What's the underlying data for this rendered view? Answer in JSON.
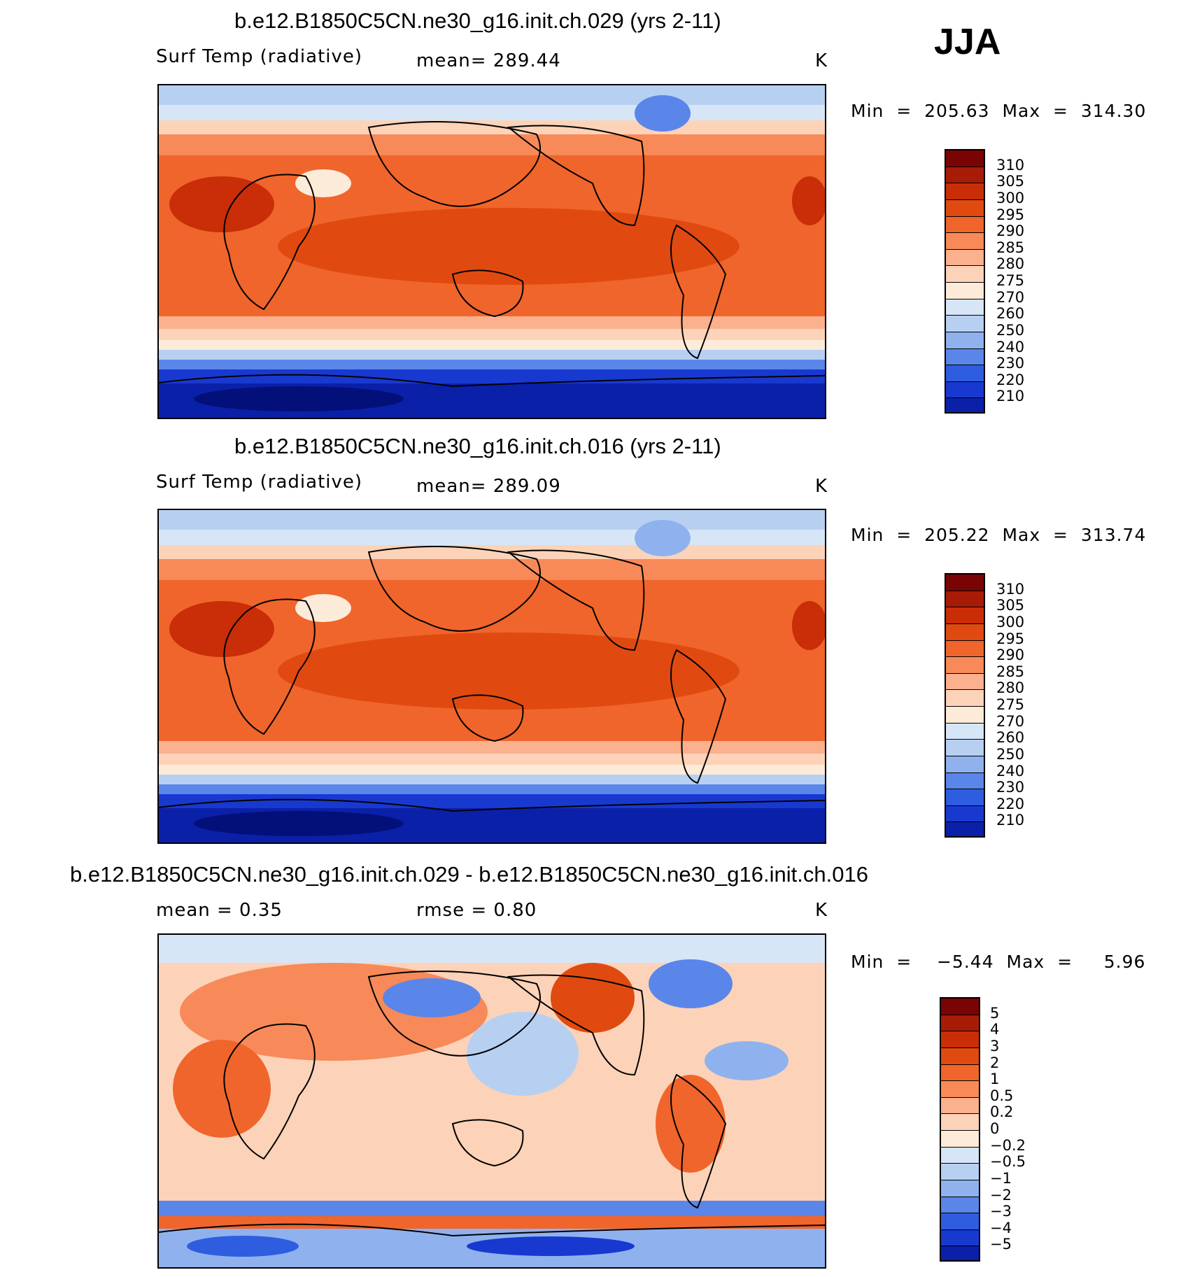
{
  "season": "JJA",
  "panels": [
    {
      "title": "b.e12.B1850C5CN.ne30_g16.init.ch.029 (yrs 2-11)",
      "variable": "Surf Temp (radiative)",
      "stat": "mean=  289.44",
      "units": "K",
      "minmax": "Min  =  205.63  Max  =  314.30",
      "colorbar_labels": [
        "310",
        "305",
        "300",
        "295",
        "290",
        "285",
        "280",
        "275",
        "270",
        "260",
        "250",
        "240",
        "230",
        "220",
        "210"
      ]
    },
    {
      "title": "b.e12.B1850C5CN.ne30_g16.init.ch.016 (yrs 2-11)",
      "variable": "Surf Temp (radiative)",
      "stat": "mean=  289.09",
      "units": "K",
      "minmax": "Min  =  205.22  Max  =  313.74",
      "colorbar_labels": [
        "310",
        "305",
        "300",
        "295",
        "290",
        "285",
        "280",
        "275",
        "270",
        "260",
        "250",
        "240",
        "230",
        "220",
        "210"
      ]
    },
    {
      "title": "b.e12.B1850C5CN.ne30_g16.init.ch.029 - b.e12.B1850C5CN.ne30_g16.init.ch.016",
      "variable": "mean =     0.35",
      "stat": "rmse =     0.80",
      "units": "K",
      "minmax": "Min  =    −5.44  Max  =     5.96",
      "colorbar_labels": [
        "5",
        "4",
        "3",
        "2",
        "1",
        "0.5",
        "0.2",
        "0",
        "−0.2",
        "−0.5",
        "−1",
        "−2",
        "−3",
        "−4",
        "−5"
      ]
    }
  ],
  "palettes": {
    "temperature": [
      "#7a0403",
      "#a81c07",
      "#c92e08",
      "#e04a10",
      "#f0652b",
      "#f78a58",
      "#fbb08e",
      "#fcd3b8",
      "#fdebd9",
      "#d6e6f7",
      "#b7d0f2",
      "#8fb2ee",
      "#5a86ea",
      "#2e5de0",
      "#1839cf",
      "#0b20a8",
      "#03107a"
    ],
    "difference": [
      "#7a0403",
      "#a81c07",
      "#c92e08",
      "#e04a10",
      "#f0652b",
      "#f78a58",
      "#fbb08e",
      "#fcd3b8",
      "#fdebd9",
      "#d6e6f7",
      "#b7d0f2",
      "#8fb2ee",
      "#5a86ea",
      "#2e5de0",
      "#1839cf",
      "#0b20a8"
    ]
  }
}
